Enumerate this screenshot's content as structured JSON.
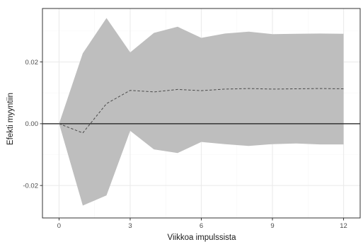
{
  "chart_data": {
    "type": "area",
    "xlabel": "Viikkoa impulssista",
    "ylabel": "Efekti myyntiin",
    "xlim": [
      -0.7,
      12.7
    ],
    "ylim": [
      -0.0305,
      0.0373
    ],
    "x_ticks": [
      0,
      3,
      6,
      9,
      12
    ],
    "y_ticks": [
      -0.02,
      0.0,
      0.02
    ],
    "x_tick_labels": [
      "0",
      "3",
      "6",
      "9",
      "12"
    ],
    "y_tick_labels": [
      "-0.02",
      "0.00",
      "0.02"
    ],
    "grid": true,
    "reference_line": 0,
    "x": [
      0,
      1,
      2,
      3,
      4,
      5,
      6,
      7,
      8,
      9,
      10,
      11,
      12
    ],
    "series": [
      {
        "role": "response",
        "values": [
          0.0,
          -0.003,
          0.0065,
          0.0108,
          0.0103,
          0.0111,
          0.0107,
          0.0112,
          0.0114,
          0.0112,
          0.0113,
          0.0114,
          0.0113
        ]
      },
      {
        "role": "upper",
        "values": [
          0.0,
          0.0228,
          0.0342,
          0.0231,
          0.0294,
          0.0314,
          0.0278,
          0.0292,
          0.0298,
          0.029,
          0.0291,
          0.0292,
          0.0291
        ]
      },
      {
        "role": "lower",
        "values": [
          0.0,
          -0.0265,
          -0.0232,
          -0.0023,
          -0.0083,
          -0.0095,
          -0.0059,
          -0.0066,
          -0.0072,
          -0.0066,
          -0.0064,
          -0.0067,
          -0.0067
        ]
      }
    ],
    "colors": {
      "band": "#bebebe",
      "line": "#4a4a4a",
      "zero_line": "#1a1a1a",
      "grid_major": "#ebebeb",
      "grid_minor": "#f5f5f5",
      "panel_border": "#333333"
    }
  }
}
